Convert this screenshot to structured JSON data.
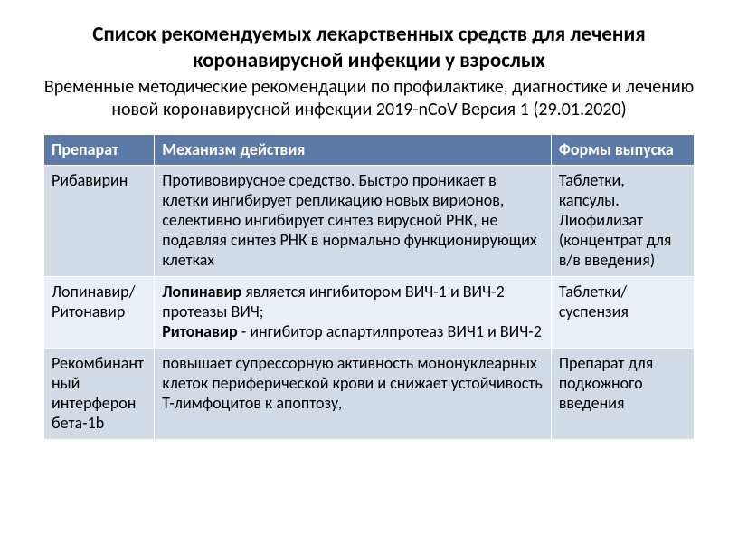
{
  "title": "Список рекомендуемых лекарственных средств для лечения коронавирусной инфекции у взрослых",
  "subtitle": "Временные методические рекомендации по профилактике, диагностике и лечению новой коронавирусной инфекции 2019-nCoV   Версия 1 (29.01.2020)",
  "table": {
    "columns": [
      {
        "label": "Препарат",
        "width": "17%"
      },
      {
        "label": "Механизм действия",
        "width": "61%"
      },
      {
        "label": "Формы выпуска",
        "width": "22%"
      }
    ],
    "header_bg": "#5b7aa8",
    "header_fg": "#ffffff",
    "row_bg_alt": [
      "#d2dae6",
      "#eaeef5"
    ],
    "border_color": "#ffffff",
    "cell_fontsize": 18,
    "rows": [
      {
        "drug": "Рибавирин",
        "mech_plain": "Противовирусное средство. Быстро проникает в клетки ингибирует репликацию новых вирионов, селективно ингибирует синтез вирусной РНК, не подавляя синтез РНК в нормально функционирующих клетках",
        "form": "Таблетки, капсулы. Лиофилизат (концентрат для в/в введения)"
      },
      {
        "drug": "Лопинавир/Ритонавир",
        "mech_runs": [
          {
            "t": "Лопинавир",
            "bold": true
          },
          {
            "t": " является ингибитором ВИЧ-1 и ВИЧ-2 протеазы ВИЧ;",
            "bold": false
          },
          {
            "t": "\n",
            "bold": false
          },
          {
            "t": "Ритонавир",
            "bold": true
          },
          {
            "t": " - ингибитор аспартилпротеаз ВИЧ1 и ВИЧ-2",
            "bold": false
          }
        ],
        "form": "Таблетки/суспензия"
      },
      {
        "drug": "Рекомбинантный интерферон бета-1b",
        "mech_plain": "повышает супрессорную активность мононуклеарных клеток периферической крови и снижает устойчивость Т-лимфоцитов к апоптозу,",
        "form": "Препарат для подкожного введения"
      }
    ]
  }
}
